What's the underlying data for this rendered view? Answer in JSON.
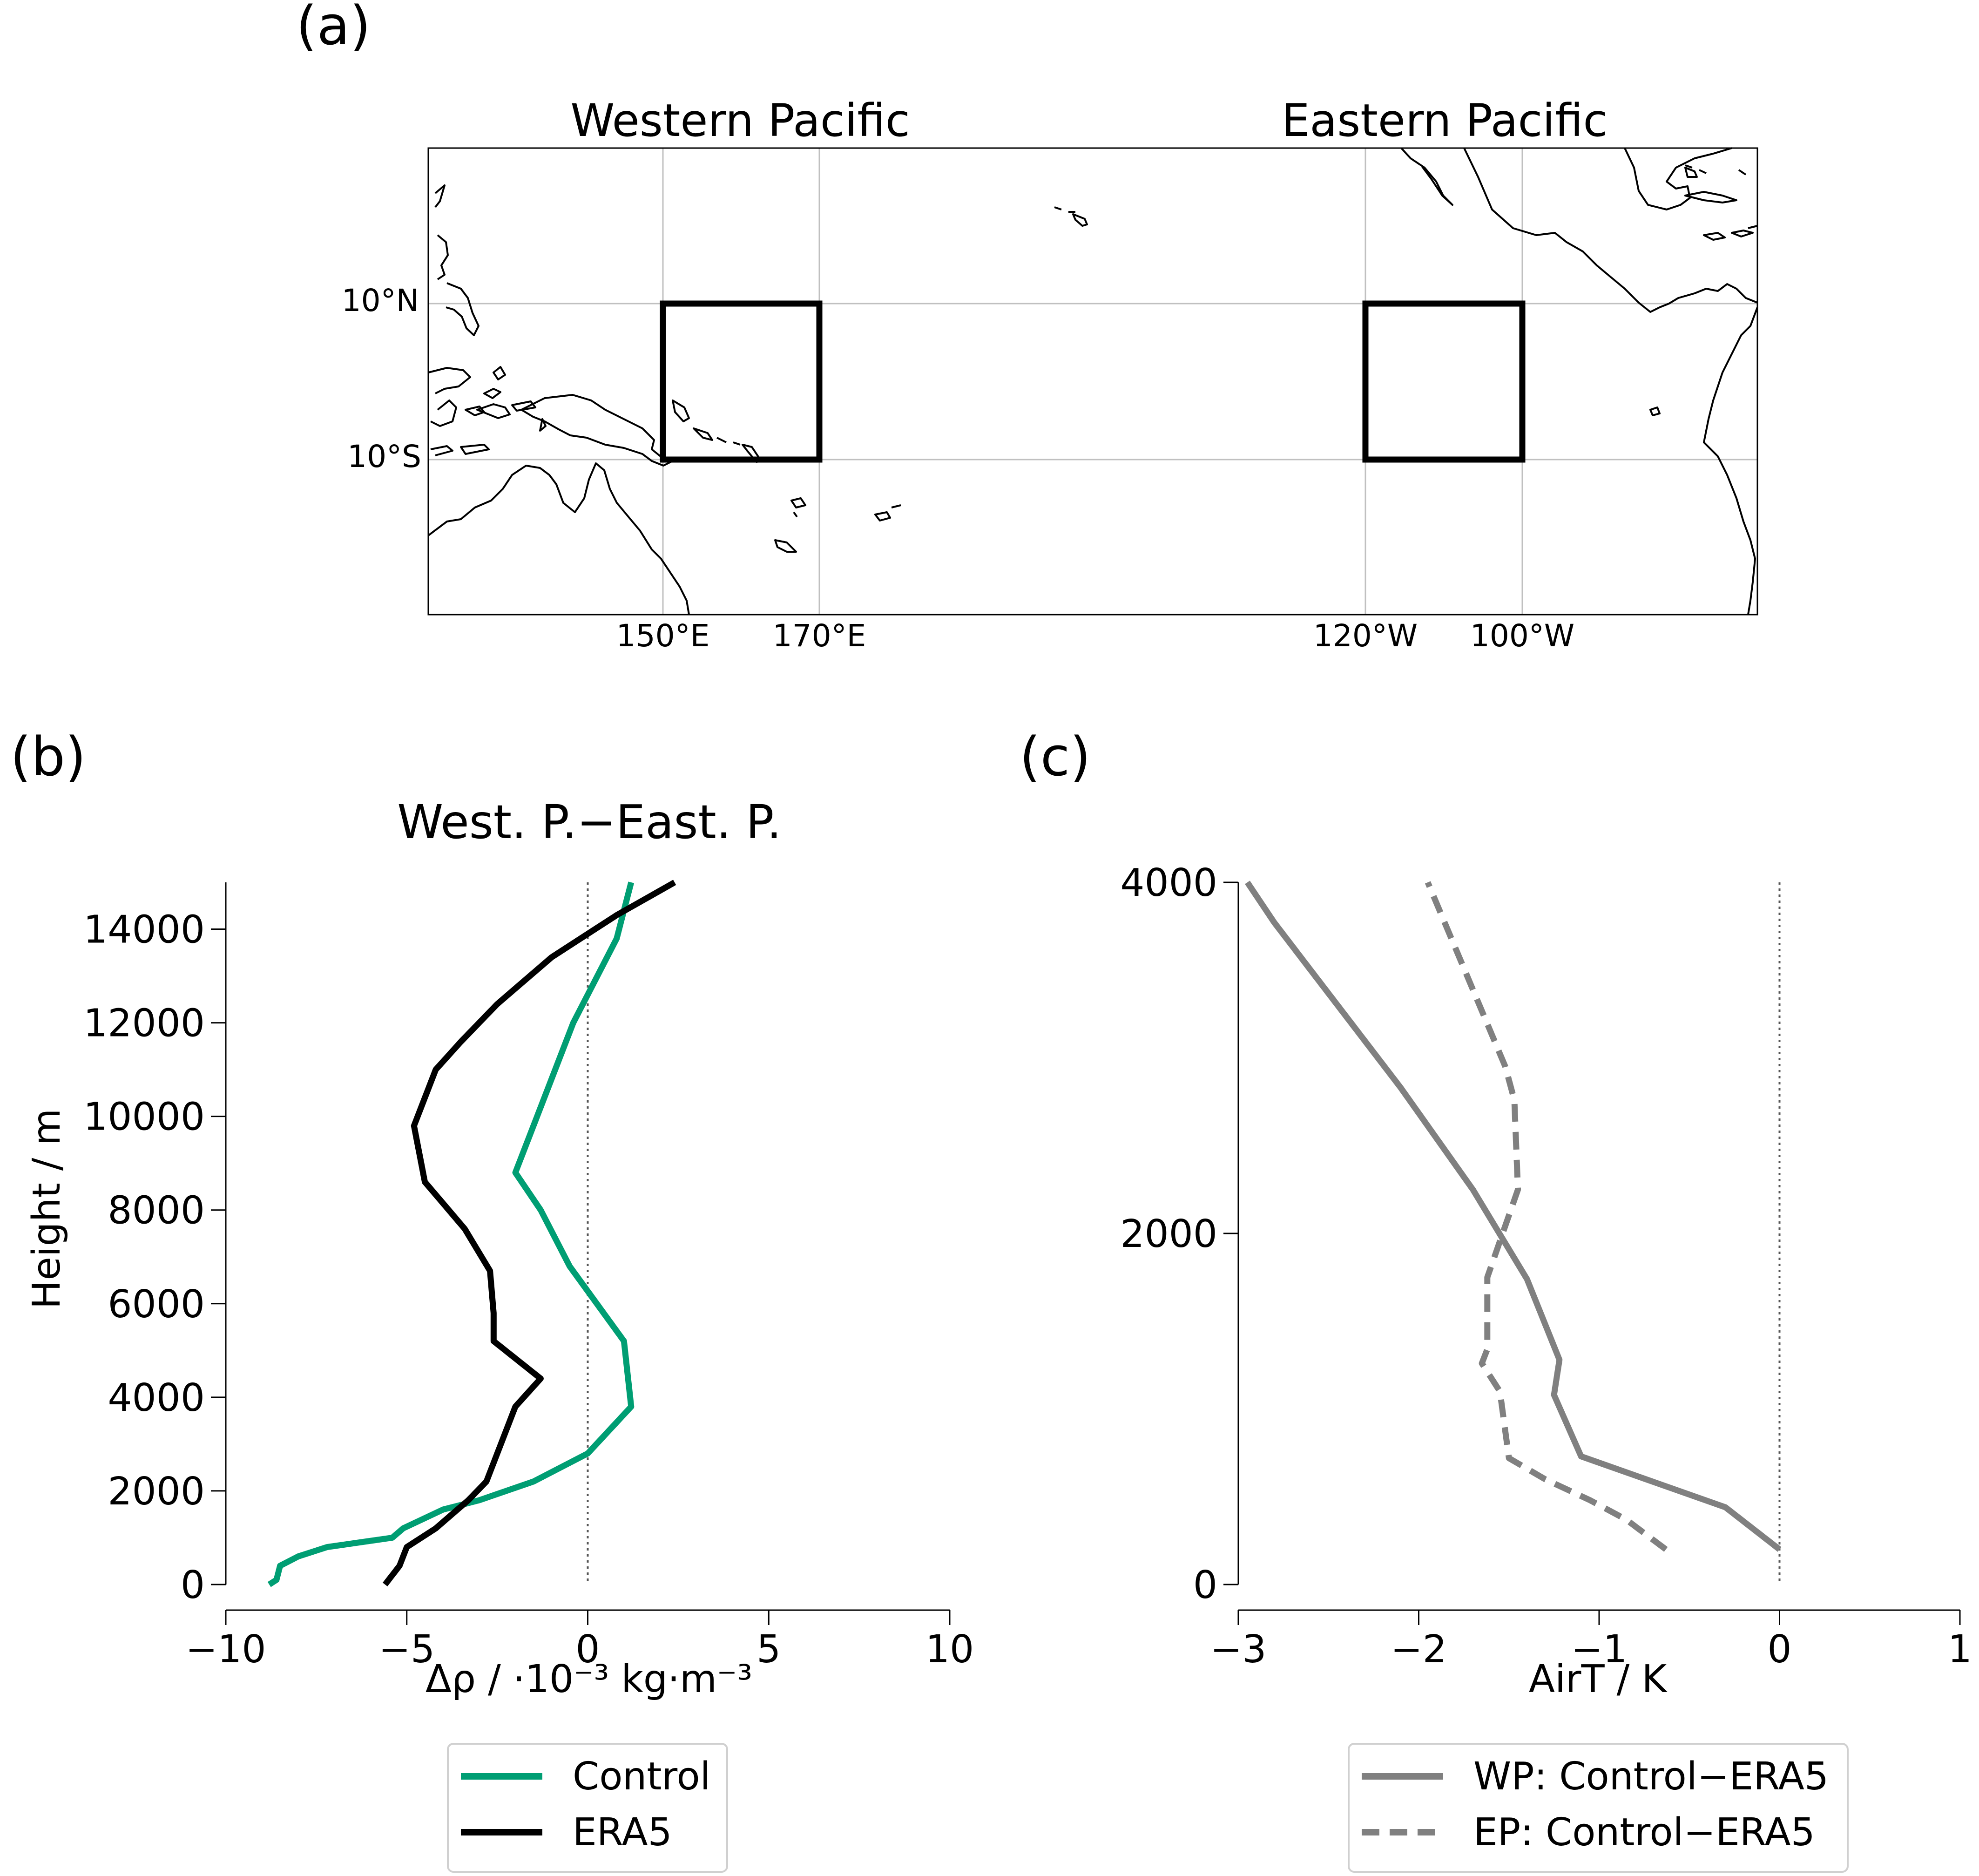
{
  "panels": {
    "a": {
      "label": "(a)",
      "region_titles": [
        "Western Pacific",
        "Eastern Pacific"
      ],
      "lat_ticks": [
        "10°N",
        "10°S"
      ],
      "lon_ticks": [
        "150°E",
        "170°E",
        "120°W",
        "100°W"
      ],
      "boxes": [
        {
          "name": "Western Pacific",
          "lon": [
            150,
            170
          ],
          "lat": [
            -10,
            10
          ]
        },
        {
          "name": "Eastern Pacific",
          "lon": [
            240,
            260
          ],
          "lat": [
            -10,
            10
          ]
        }
      ],
      "map_extent": {
        "lon": [
          120,
          290
        ],
        "lat": [
          -30,
          30
        ]
      }
    },
    "b": {
      "label": "(b)"
    },
    "c": {
      "label": "(c)"
    }
  },
  "chart_data": [
    {
      "type": "line",
      "title": "West. P.−East. P.",
      "xlabel": "Δρ / ·10⁻³ kg·m⁻³",
      "ylabel": "Height / m",
      "xlim": [
        -10,
        10
      ],
      "ylim": [
        0,
        15000
      ],
      "xticks": [
        -10,
        -5,
        0,
        5,
        10
      ],
      "xtick_labels": [
        "−10",
        "−5",
        "0",
        "5",
        "10"
      ],
      "yticks": [
        0,
        2000,
        4000,
        6000,
        8000,
        10000,
        12000,
        14000
      ],
      "ytick_labels": [
        "0",
        "2000",
        "4000",
        "6000",
        "8000",
        "10000",
        "12000",
        "14000"
      ],
      "reference_line": {
        "x": 0,
        "style": "dotted"
      },
      "legend_position": "below",
      "series": [
        {
          "name": "Control",
          "color": "#009e73",
          "dash": "solid",
          "x": [
            -8.8,
            -8.6,
            -8.5,
            -8.0,
            -7.2,
            -5.4,
            -5.1,
            -4.0,
            -3.0,
            -1.5,
            0.0,
            1.2,
            1.0,
            -0.5,
            -1.3,
            -2.0,
            -1.4,
            -0.4,
            0.8,
            1.2
          ],
          "y": [
            0,
            100,
            400,
            600,
            800,
            1000,
            1200,
            1600,
            1800,
            2200,
            2800,
            3800,
            5200,
            6800,
            8000,
            8800,
            10000,
            12000,
            13800,
            15000
          ]
        },
        {
          "name": "ERA5",
          "color": "#000000",
          "dash": "solid",
          "x": [
            -5.6,
            -5.2,
            -5.0,
            -4.2,
            -3.6,
            -3.3,
            -2.8,
            -2.0,
            -1.3,
            -2.6,
            -2.6,
            -2.7,
            -3.4,
            -4.5,
            -4.8,
            -4.2,
            -3.5,
            -2.5,
            -1.0,
            0.8,
            2.4
          ],
          "y": [
            0,
            400,
            800,
            1200,
            1600,
            1800,
            2200,
            3800,
            4400,
            5200,
            5800,
            6700,
            7600,
            8600,
            9800,
            11000,
            11600,
            12400,
            13400,
            14300,
            15000
          ]
        }
      ]
    },
    {
      "type": "line",
      "title": "",
      "xlabel": "AirT / K",
      "ylabel": "",
      "xlim": [
        -3,
        1
      ],
      "ylim": [
        0,
        4000
      ],
      "xticks": [
        -3,
        -2,
        -1,
        0,
        1
      ],
      "xtick_labels": [
        "−3",
        "−2",
        "−1",
        "0",
        "1"
      ],
      "yticks": [
        0,
        2000,
        4000
      ],
      "ytick_labels": [
        "0",
        "2000",
        "4000"
      ],
      "reference_line": {
        "x": 0,
        "style": "dotted"
      },
      "legend_position": "below",
      "series": [
        {
          "name": "WP: Control−ERA5",
          "color": "#808080",
          "dash": "solid",
          "x": [
            0.0,
            -0.3,
            -1.1,
            -1.25,
            -1.22,
            -1.4,
            -1.7,
            -2.1,
            -2.8,
            -2.95
          ],
          "y": [
            200,
            440,
            730,
            1080,
            1280,
            1740,
            2250,
            2830,
            3770,
            4000
          ]
        },
        {
          "name": "EP: Control−ERA5",
          "color": "#808080",
          "dash": "dashed",
          "x": [
            -0.63,
            -0.85,
            -1.05,
            -1.3,
            -1.5,
            -1.55,
            -1.65,
            -1.62,
            -1.62,
            -1.45,
            -1.47,
            -1.52,
            -1.95
          ],
          "y": [
            200,
            370,
            480,
            600,
            720,
            1100,
            1260,
            1340,
            1750,
            2250,
            2760,
            2950,
            4000
          ]
        }
      ]
    }
  ]
}
